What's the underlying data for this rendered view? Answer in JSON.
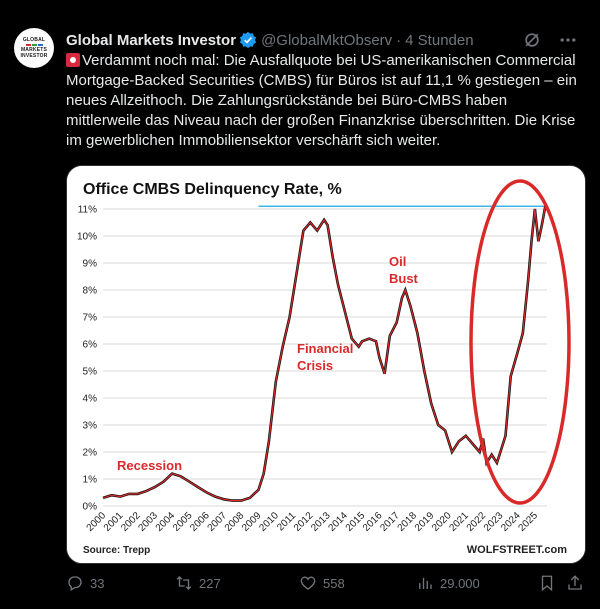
{
  "tweet": {
    "author_name": "Global Markets Investor",
    "handle": "@GlobalMktObserv",
    "time": "4 Stunden",
    "avatar_text": [
      "GLOBAL",
      "MARKETS",
      "INVESTOR"
    ],
    "text": "Verdammt noch mal: Die Ausfallquote bei US-amerikanischen Commercial Mortgage-Backed Securities (CMBS) für Büros ist auf 11,1 % gestiegen – ein neues Allzeithoch. Die Zahlungsrückstände bei Büro-CMBS haben mittlerweile das Niveau nach der großen Finanzkrise überschritten. Die Krise im gewerblichen Immobiliensektor verschärft sich weiter.",
    "stats": {
      "replies": "33",
      "reposts": "227",
      "likes": "558",
      "views": "29.000"
    }
  },
  "colors": {
    "verified": "#1d9bf0",
    "accent_red": "#d92a2a",
    "highlight_line": "#3cb4e6"
  },
  "chart_data": {
    "type": "line",
    "title": "Office CMBS Delinquency Rate, %",
    "source": "Source: Trepp",
    "brand": "WOLFSTREET.com",
    "xlabel": "",
    "ylabel": "",
    "x_ticks": [
      "2000",
      "2001",
      "2002",
      "2003",
      "2004",
      "2005",
      "2006",
      "2007",
      "2008",
      "2009",
      "2010",
      "2011",
      "2012",
      "2013",
      "2014",
      "2015",
      "2016",
      "2017",
      "2018",
      "2019",
      "2020",
      "2021",
      "2022",
      "2023",
      "2024",
      "2025"
    ],
    "y_ticks": [
      "0%",
      "1%",
      "2%",
      "3%",
      "4%",
      "5%",
      "6%",
      "7%",
      "8%",
      "9%",
      "10%",
      "11%"
    ],
    "xlim": [
      2000,
      2025.7
    ],
    "ylim": [
      0,
      11
    ],
    "annotations": [
      "Recession",
      "Financial Crisis",
      "Oil Bust"
    ],
    "series": [
      {
        "x": [
          2000.0,
          2000.5,
          2001.0,
          2001.5,
          2002.0,
          2002.5,
          2003.0,
          2003.5,
          2004.0,
          2004.5,
          2005.0,
          2005.5,
          2006.0,
          2006.5,
          2007.0,
          2007.5,
          2008.0,
          2008.5,
          2009.0,
          2009.3,
          2009.6,
          2010.0,
          2010.4,
          2010.8,
          2011.2,
          2011.6,
          2012.0,
          2012.4,
          2012.8,
          2013.0,
          2013.3,
          2013.6,
          2014.0,
          2014.4,
          2014.8,
          2015.0,
          2015.4,
          2015.8,
          2016.0,
          2016.3,
          2016.6,
          2017.0,
          2017.3,
          2017.5,
          2017.8,
          2018.2,
          2018.6,
          2019.0,
          2019.4,
          2019.8,
          2020.2,
          2020.6,
          2021.0,
          2021.4,
          2021.8,
          2022.0,
          2022.2,
          2022.5,
          2022.8,
          2023.0,
          2023.3,
          2023.6,
          2024.0,
          2024.3,
          2024.6,
          2024.8,
          2025.0,
          2025.2,
          2025.4,
          2025.6
        ],
        "y": [
          0.3,
          0.4,
          0.35,
          0.45,
          0.45,
          0.55,
          0.7,
          0.9,
          1.2,
          1.1,
          0.9,
          0.7,
          0.5,
          0.35,
          0.25,
          0.2,
          0.2,
          0.3,
          0.6,
          1.2,
          2.4,
          4.6,
          5.9,
          7.0,
          8.6,
          10.2,
          10.5,
          10.2,
          10.6,
          10.4,
          9.2,
          8.2,
          7.2,
          6.2,
          5.9,
          6.1,
          6.2,
          6.1,
          5.5,
          4.9,
          6.3,
          6.8,
          7.7,
          8.0,
          7.4,
          6.4,
          5.0,
          3.8,
          3.0,
          2.8,
          2.0,
          2.4,
          2.6,
          2.3,
          2.0,
          2.5,
          1.6,
          1.9,
          1.6,
          2.0,
          2.6,
          4.8,
          5.7,
          6.4,
          8.3,
          9.8,
          11.0,
          9.8,
          10.4,
          11.1
        ]
      }
    ]
  }
}
